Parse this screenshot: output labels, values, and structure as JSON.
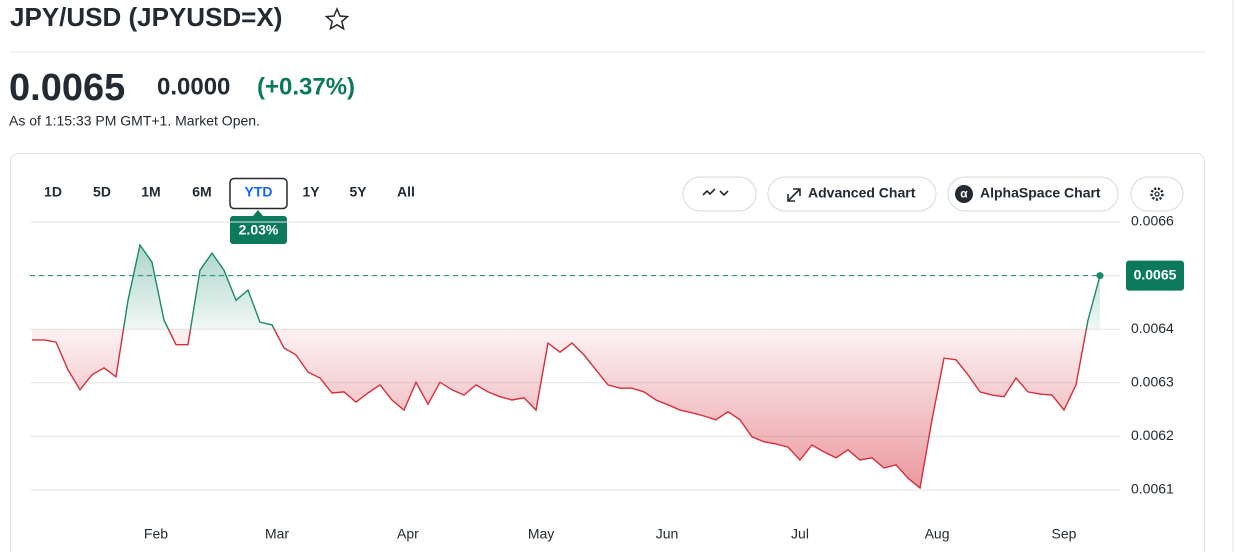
{
  "header": {
    "title": "JPY/USD (JPYUSD=X)",
    "price": "0.0065",
    "change": "0.0000",
    "change_percent": "(+0.37%)",
    "timestamp": "As of 1:15:33 PM GMT+1. Market Open."
  },
  "range_tabs": [
    "1D",
    "5D",
    "1M",
    "6M",
    "YTD",
    "1Y",
    "5Y",
    "All"
  ],
  "selected_tab": "YTD",
  "range_change": "2.03%",
  "toolbar": {
    "advanced_chart": "Advanced Chart",
    "alphaspace_chart": "AlphaSpace Chart"
  },
  "chart_data": {
    "type": "area",
    "values": [
      0.00638,
      0.00638,
      0.006376,
      0.006324,
      0.006287,
      0.006315,
      0.006328,
      0.006311,
      0.006454,
      0.006557,
      0.006525,
      0.006417,
      0.006371,
      0.006371,
      0.00651,
      0.006542,
      0.00651,
      0.006454,
      0.006473,
      0.006413,
      0.006408,
      0.006365,
      0.006352,
      0.00632,
      0.006309,
      0.006281,
      0.006283,
      0.006264,
      0.006281,
      0.006296,
      0.006268,
      0.006249,
      0.006301,
      0.00626,
      0.006301,
      0.006287,
      0.006277,
      0.006296,
      0.006283,
      0.006274,
      0.006268,
      0.006272,
      0.006249,
      0.006374,
      0.006357,
      0.006374,
      0.006352,
      0.006324,
      0.006296,
      0.00629,
      0.00629,
      0.006283,
      0.006268,
      0.006259,
      0.006249,
      0.006244,
      0.006238,
      0.006231,
      0.006246,
      0.006231,
      0.006199,
      0.00619,
      0.006186,
      0.00618,
      0.006156,
      0.006184,
      0.006171,
      0.00616,
      0.006175,
      0.006156,
      0.00616,
      0.006141,
      0.006147,
      0.006122,
      0.006104,
      0.006231,
      0.006346,
      0.006343,
      0.006315,
      0.006283,
      0.006277,
      0.006274,
      0.006309,
      0.006283,
      0.006279,
      0.006277,
      0.006249,
      0.006296,
      0.006417,
      0.0065
    ],
    "up_color": "#1b8a6b",
    "down_color": "#d62f3c",
    "baseline": 0.0064,
    "last_price": 0.0065,
    "ylim": [
      0.0061,
      0.0066
    ],
    "yticks": [
      0.0066,
      0.0065,
      0.0064,
      0.0063,
      0.0062,
      0.0061
    ],
    "xlim": [
      0,
      89
    ],
    "xticks": [
      {
        "value": 10.33,
        "label": "Feb"
      },
      {
        "value": 20.42,
        "label": "Mar"
      },
      {
        "value": 31.33,
        "label": "Apr"
      },
      {
        "value": 42.42,
        "label": "May"
      },
      {
        "value": 52.92,
        "label": "Jun"
      },
      {
        "value": 64,
        "label": "Jul"
      },
      {
        "value": 75.42,
        "label": "Aug"
      },
      {
        "value": 86,
        "label": "Sep"
      }
    ],
    "grid": true
  }
}
